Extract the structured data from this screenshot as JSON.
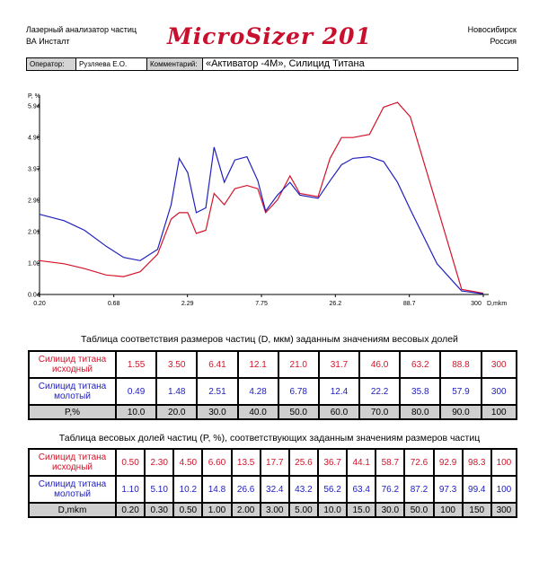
{
  "header": {
    "left_line1": "Лазерный анализатор частиц",
    "left_line2": "ВА Инсталт",
    "logo": "MicroSizer 201",
    "right_line1": "Новосибирск",
    "right_line2": "Россия"
  },
  "operator_row": {
    "operator_label": "Оператор:",
    "operator_value": "Рузляева Е.О.",
    "comment_label": "Комментарий:",
    "comment_value": "«Активатор -4М», Силицид Титана"
  },
  "colors": {
    "red": "#d4142a",
    "blue": "#2020c0",
    "logo": "#c8102e",
    "grey": "#cfcfcf"
  },
  "chart_data": {
    "type": "line",
    "ylabel": "P, %",
    "xlabel": "D,mkm",
    "x_scale": "log",
    "y_ticks": [
      "5.94",
      "4.96",
      "3.97",
      "2.99",
      "2.01",
      "1.02",
      "0.04"
    ],
    "x_ticks": [
      "0.20",
      "0.68",
      "2.29",
      "7.75",
      "26.2",
      "88.7",
      "300"
    ],
    "ylim": [
      0.04,
      5.94
    ],
    "xlim": [
      0.2,
      300
    ],
    "x": [
      0.2,
      0.3,
      0.42,
      0.6,
      0.8,
      1.05,
      1.4,
      1.75,
      2.0,
      2.3,
      2.65,
      3.1,
      3.55,
      4.2,
      5.0,
      6.1,
      7.3,
      8.3,
      10.1,
      12.4,
      14.6,
      19.7,
      24.0,
      29.0,
      35.0,
      46.0,
      58.0,
      73.0,
      90.0,
      140.0,
      210.0,
      300.0
    ],
    "series": [
      {
        "name": "Силицид титана исходный",
        "color": "#d4142a",
        "values": [
          1.1,
          1.0,
          0.85,
          0.65,
          0.6,
          0.75,
          1.3,
          2.4,
          2.6,
          2.6,
          1.95,
          2.05,
          3.2,
          2.85,
          3.35,
          3.45,
          3.35,
          2.6,
          3.0,
          3.75,
          3.2,
          3.1,
          4.3,
          4.95,
          4.95,
          5.05,
          5.9,
          6.05,
          5.6,
          2.8,
          0.2,
          0.08
        ]
      },
      {
        "name": "Силицид титана молотый",
        "color": "#2020c0",
        "values": [
          2.55,
          2.35,
          2.05,
          1.55,
          1.2,
          1.1,
          1.45,
          2.85,
          4.3,
          3.85,
          2.6,
          2.75,
          4.65,
          3.55,
          4.25,
          4.35,
          3.6,
          2.65,
          3.15,
          3.55,
          3.15,
          3.05,
          3.6,
          4.1,
          4.3,
          4.35,
          4.2,
          3.55,
          2.7,
          1.0,
          0.15,
          0.06
        ]
      }
    ]
  },
  "table1": {
    "title": "Таблица соответствия размеров частиц (D, мкм) заданным значениям весовых долей",
    "rows": [
      {
        "label": "Силицид титана исходный",
        "color": "red",
        "values": [
          "1.55",
          "3.50",
          "6.41",
          "12.1",
          "21.0",
          "31.7",
          "46.0",
          "63.2",
          "88.8",
          "300"
        ]
      },
      {
        "label": "Силицид титана молотый",
        "color": "blue",
        "values": [
          "0.49",
          "1.48",
          "2.51",
          "4.28",
          "6.78",
          "12.4",
          "22.2",
          "35.8",
          "57.9",
          "300"
        ]
      },
      {
        "label": "P,%",
        "color": "param",
        "values": [
          "10.0",
          "20.0",
          "30.0",
          "40.0",
          "50.0",
          "60.0",
          "70.0",
          "80.0",
          "90.0",
          "100"
        ]
      }
    ]
  },
  "table2": {
    "title": "Таблица весовых долей частиц (P, %), соответствующих заданным значениям размеров частиц",
    "rows": [
      {
        "label": "Силицид титана исходный",
        "color": "red",
        "values": [
          "0.50",
          "2.30",
          "4.50",
          "6.60",
          "13.5",
          "17.7",
          "25.6",
          "36.7",
          "44.1",
          "58.7",
          "72.6",
          "92.9",
          "98.3",
          "100"
        ]
      },
      {
        "label": "Силицид титана молотый",
        "color": "blue",
        "values": [
          "1.10",
          "5.10",
          "10.2",
          "14.8",
          "26.6",
          "32.4",
          "43.2",
          "56.2",
          "63.4",
          "76.2",
          "87.2",
          "97.3",
          "99.4",
          "100"
        ]
      },
      {
        "label": "D,mkm",
        "color": "param",
        "values": [
          "0.20",
          "0.30",
          "0.50",
          "1.00",
          "2.00",
          "3.00",
          "5.00",
          "10.0",
          "15.0",
          "30.0",
          "50.0",
          "100",
          "150",
          "300"
        ]
      }
    ]
  }
}
